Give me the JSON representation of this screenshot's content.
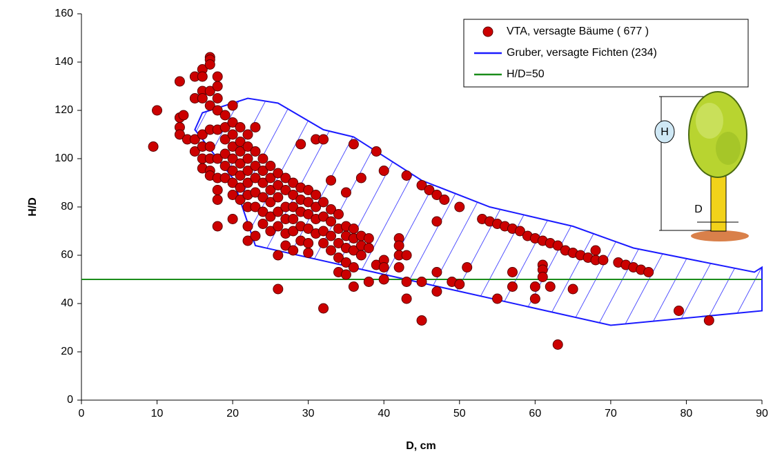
{
  "chart_data": {
    "type": "scatter",
    "xlabel": "D, cm",
    "ylabel": "H/D",
    "xlim": [
      0,
      90
    ],
    "ylim": [
      0,
      160
    ],
    "xticks": [
      0,
      10,
      20,
      30,
      40,
      50,
      60,
      70,
      80,
      90
    ],
    "yticks": [
      0,
      20,
      40,
      60,
      80,
      100,
      120,
      140,
      160
    ],
    "legend": "upper right",
    "annotations": [
      "H",
      "D"
    ],
    "series": [
      {
        "name": "VTA, versagte Bäume ( 677 )",
        "color": "#cc0000",
        "type": "scatter",
        "x": [
          9.5,
          10,
          13,
          13,
          13,
          13,
          13.5,
          14,
          15,
          15,
          15,
          15,
          16,
          16,
          16,
          16,
          16,
          16,
          16,
          16,
          17,
          17,
          17,
          17,
          17,
          17,
          17,
          17,
          17,
          17,
          18,
          18,
          18,
          18,
          18,
          18,
          18,
          18,
          18,
          18,
          19,
          19,
          19,
          19,
          19,
          19,
          20,
          20,
          20,
          20,
          20,
          20,
          20,
          20,
          20,
          21,
          21,
          21,
          21,
          21,
          21,
          21,
          22,
          22,
          22,
          22,
          22,
          22,
          22,
          22,
          22,
          23,
          23,
          23,
          23,
          23,
          23,
          23,
          24,
          24,
          24,
          24,
          24,
          24,
          25,
          25,
          25,
          25,
          25,
          25,
          26,
          26,
          26,
          26,
          26,
          26,
          26,
          27,
          27,
          27,
          27,
          27,
          27,
          28,
          28,
          28,
          28,
          28,
          28,
          29,
          29,
          29,
          29,
          29,
          29,
          30,
          30,
          30,
          30,
          30,
          30,
          31,
          31,
          31,
          31,
          31,
          32,
          32,
          32,
          32,
          32,
          32,
          33,
          33,
          33,
          33,
          33,
          34,
          34,
          34,
          34,
          34,
          35,
          35,
          35,
          35,
          35,
          35,
          36,
          36,
          36,
          36,
          36,
          36,
          37,
          37,
          37,
          37,
          38,
          38,
          38,
          39,
          39,
          40,
          40,
          40,
          40,
          42,
          42,
          42,
          42,
          43,
          43,
          43,
          43,
          45,
          45,
          45,
          46,
          47,
          47,
          47,
          47,
          48,
          49,
          50,
          50,
          51,
          53,
          54,
          55,
          55,
          56,
          57,
          57,
          57,
          58,
          59,
          60,
          60,
          60,
          61,
          61,
          61,
          61,
          62,
          62,
          63,
          63,
          64,
          65,
          65,
          66,
          67,
          68,
          68,
          69,
          71,
          72,
          73,
          74,
          75,
          79,
          83
        ],
        "values": [
          105,
          120,
          132,
          117,
          113,
          110,
          118,
          108,
          134,
          125,
          108,
          103,
          137,
          134,
          128,
          125,
          110,
          105,
          100,
          96,
          142,
          141,
          139,
          128,
          122,
          112,
          105,
          100,
          95,
          93,
          134,
          130,
          125,
          120,
          112,
          100,
          92,
          87,
          83,
          72,
          118,
          113,
          108,
          102,
          97,
          92,
          122,
          115,
          110,
          105,
          100,
          95,
          90,
          85,
          75,
          113,
          107,
          103,
          98,
          93,
          88,
          83,
          110,
          105,
          100,
          95,
          90,
          85,
          80,
          72,
          66,
          113,
          103,
          97,
          92,
          86,
          80,
          68,
          100,
          95,
          90,
          84,
          78,
          73,
          97,
          92,
          87,
          82,
          76,
          70,
          94,
          89,
          84,
          78,
          72,
          60,
          46,
          92,
          87,
          80,
          75,
          69,
          64,
          90,
          85,
          80,
          75,
          70,
          62,
          106,
          88,
          83,
          78,
          72,
          66,
          87,
          82,
          77,
          71,
          65,
          61,
          85,
          80,
          75,
          69,
          108,
          108,
          82,
          76,
          70,
          65,
          38,
          91,
          79,
          74,
          68,
          62,
          77,
          71,
          65,
          59,
          53,
          72,
          68,
          63,
          57,
          52,
          86,
          106,
          71,
          67,
          62,
          55,
          47,
          92,
          68,
          64,
          60,
          67,
          63,
          49,
          103,
          56,
          95,
          58,
          55,
          50,
          67,
          64,
          60,
          55,
          93,
          60,
          49,
          42,
          89,
          49,
          33,
          87,
          85,
          74,
          53,
          45,
          83,
          49,
          80,
          48,
          55,
          75,
          74,
          73,
          42,
          72,
          71,
          53,
          47,
          70,
          68,
          67,
          47,
          42,
          66,
          56,
          54,
          51,
          65,
          47,
          64,
          23,
          62,
          61,
          46,
          60,
          59,
          62,
          58,
          58,
          57,
          56,
          55,
          54,
          53,
          37,
          33
        ]
      },
      {
        "name": "Gruber, versagte Fichten (234)",
        "color": "#1a1aff",
        "type": "polygon",
        "x": [
          15,
          16,
          22,
          26,
          32,
          36,
          45,
          54,
          65,
          73,
          89,
          90,
          90,
          70,
          23,
          20,
          15
        ],
        "values": [
          112,
          119,
          125,
          123,
          112,
          109,
          91,
          80,
          72,
          63,
          53,
          55,
          37,
          31,
          64,
          92,
          112
        ]
      },
      {
        "name": "H/D=50",
        "color": "#1a8c1a",
        "type": "line",
        "x": [
          0,
          90
        ],
        "values": [
          50,
          50
        ]
      }
    ]
  }
}
